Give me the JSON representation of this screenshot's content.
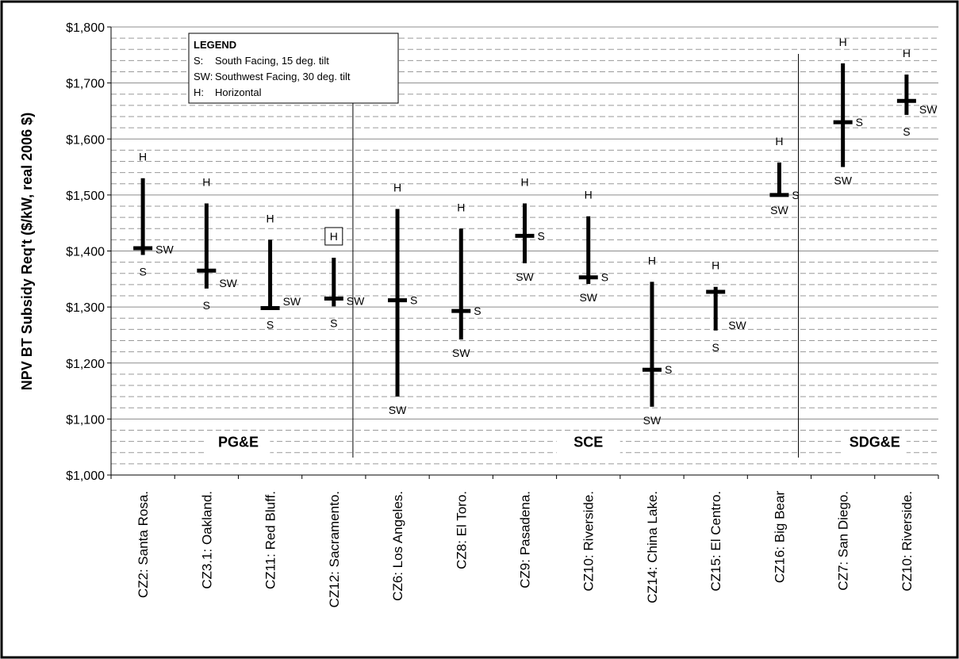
{
  "chart_data": {
    "type": "range",
    "ylabel": "NPV BT Subsidy Req't ($/kW, real 2006 $)",
    "ylim": [
      1000,
      1800
    ],
    "y_major_step": 100,
    "y_minor_step": 20,
    "y_tick_labels": [
      "$1,000",
      "$1,100",
      "$1,200",
      "$1,300",
      "$1,400",
      "$1,500",
      "$1,600",
      "$1,700",
      "$1,800"
    ],
    "categories": [
      "CZ2: Santa Rosa.",
      "CZ3.1: Oakland.",
      "CZ11: Red Bluff.",
      "CZ12: Sacramento.",
      "CZ6: Los Angeles.",
      "CZ8: El Toro.",
      "CZ9: Pasadena.",
      "CZ10: Riverside.",
      "CZ14: China Lake.",
      "CZ15: El Centro.",
      "CZ16: Big Bear",
      "CZ7: San Diego.",
      "CZ10: Riverside."
    ],
    "point_labels": {
      "H": "H",
      "S": "S",
      "SW": "SW"
    },
    "series": [
      {
        "name": "H",
        "values": [
          1530,
          1485,
          1420,
          1388,
          1475,
          1440,
          1485,
          1462,
          1345,
          1336,
          1558,
          1735,
          1715
        ]
      },
      {
        "name": "S",
        "values": [
          1405,
          1365,
          1298,
          1315,
          1312,
          1293,
          1427,
          1353,
          1188,
          1327,
          1500,
          1630,
          1668
        ]
      },
      {
        "name": "SW",
        "values": [
          1393,
          1333,
          1300,
          1301,
          1140,
          1242,
          1378,
          1341,
          1122,
          1258,
          1497,
          1550,
          1643
        ]
      }
    ],
    "label_sides": [
      {
        "S": "below",
        "SW": "right"
      },
      {
        "S": "below",
        "SW": "right"
      },
      {
        "S": "below",
        "SW": "right"
      },
      {
        "S": "below",
        "SW": "right"
      },
      {
        "S": "right",
        "SW": "below"
      },
      {
        "S": "right",
        "SW": "below"
      },
      {
        "S": "right",
        "SW": "below"
      },
      {
        "S": "right",
        "SW": "below"
      },
      {
        "S": "right",
        "SW": "below"
      },
      {
        "S": "below",
        "SW": "right"
      },
      {
        "S": "right",
        "SW": "below"
      },
      {
        "S": "right",
        "SW": "below"
      },
      {
        "S": "below",
        "SW": "right"
      }
    ],
    "boxed_h_label_index": 3,
    "utilities": [
      {
        "name": "PG&E",
        "first": 0,
        "last": 3
      },
      {
        "name": "SCE",
        "first": 4,
        "last": 10
      },
      {
        "name": "SDG&E",
        "first": 11,
        "last": 12
      }
    ],
    "group_dividers_after": [
      3,
      10
    ],
    "legend": {
      "position": "top-left",
      "title": "LEGEND",
      "entries": [
        {
          "key": "S:",
          "text": "South Facing, 15 deg. tilt"
        },
        {
          "key": "SW:",
          "text": "Southwest Facing, 30 deg. tilt"
        },
        {
          "key": "H:",
          "text": "Horizontal"
        }
      ]
    },
    "grid": true
  }
}
